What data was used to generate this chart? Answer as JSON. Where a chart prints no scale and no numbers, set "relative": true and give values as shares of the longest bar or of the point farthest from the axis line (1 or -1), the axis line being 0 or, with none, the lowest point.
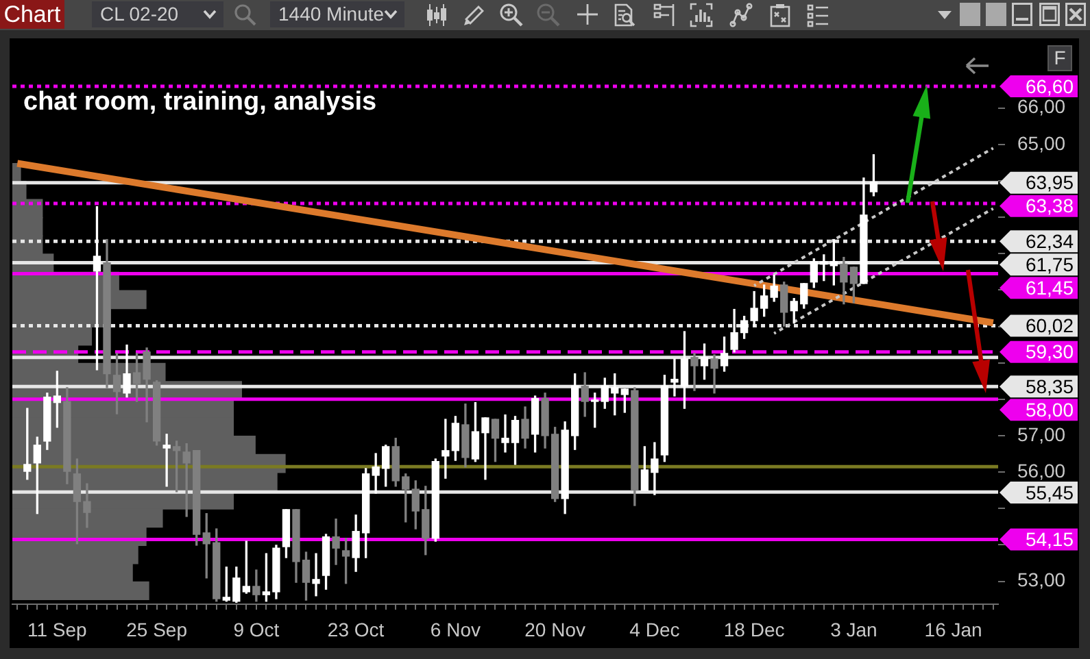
{
  "chart_data": [
    {
      "type": "candlestick",
      "subtitle": "chat room, training, analysis",
      "annotations": [
        "Chart",
        "CL 02-20",
        "1440 Minute",
        "F"
      ],
      "categories": [
        null,
        null,
        null,
        null,
        "11 Sep",
        null,
        null,
        null,
        null,
        null,
        null,
        null,
        null,
        null,
        "25 Sep",
        null,
        null,
        null,
        null,
        null,
        null,
        null,
        null,
        null,
        "9 Oct",
        null,
        null,
        null,
        null,
        null,
        null,
        null,
        null,
        null,
        "23 Oct",
        null,
        null,
        null,
        null,
        null,
        null,
        null,
        null,
        null,
        "6 Nov",
        null,
        null,
        null,
        null,
        null,
        null,
        null,
        null,
        null,
        "20 Nov",
        null,
        null,
        null,
        null,
        null,
        null,
        null,
        null,
        null,
        "4 Dec",
        null,
        null,
        null,
        null,
        null,
        null,
        null,
        null,
        null,
        "18 Dec",
        null,
        null,
        null,
        null,
        null,
        null,
        null,
        null,
        null,
        "3 Jan",
        null,
        null,
        null,
        null,
        null,
        null,
        null,
        null,
        null,
        "16 Jan",
        null,
        null,
        null,
        null
      ],
      "ohlc": [
        null,
        [
          56.02,
          57.75,
          55.8,
          56.21
        ],
        [
          56.25,
          56.96,
          54.86,
          56.74
        ],
        [
          56.85,
          58.17,
          56.62,
          58.06
        ],
        [
          57.91,
          58.77,
          57.23,
          58.09
        ],
        [
          57.94,
          58.32,
          55.68,
          56.02
        ],
        [
          55.95,
          56.36,
          54.03,
          55.19
        ],
        [
          55.19,
          55.68,
          54.48,
          54.89
        ],
        [
          61.52,
          63.29,
          58.81,
          61.93
        ],
        [
          61.75,
          62.39,
          58.32,
          58.7
        ],
        [
          58.66,
          59.26,
          57.6,
          58.21
        ],
        [
          58.17,
          59.49,
          58.06,
          58.7
        ],
        [
          58.73,
          59.26,
          57.94,
          58.43
        ],
        [
          59.3,
          59.41,
          57.38,
          58.55
        ],
        [
          58.47,
          58.51,
          56.74,
          56.85
        ],
        [
          56.66,
          57.04,
          55.61,
          56.74
        ],
        [
          56.7,
          56.85,
          55.46,
          56.59
        ],
        [
          56.55,
          56.78,
          54.78,
          56.25
        ],
        [
          56.59,
          56.59,
          53.99,
          54.29
        ],
        [
          54.33,
          54.86,
          53.09,
          54.03
        ],
        [
          54.06,
          54.44,
          52.45,
          52.52
        ],
        [
          52.48,
          53.39,
          52.45,
          52.56
        ],
        [
          52.45,
          53.39,
          52.42,
          53.09
        ],
        [
          52.71,
          54.1,
          52.67,
          52.86
        ],
        [
          52.86,
          53.31,
          52.45,
          52.63
        ],
        [
          52.63,
          53.76,
          52.45,
          52.71
        ],
        [
          52.71,
          53.99,
          52.52,
          53.91
        ],
        [
          53.95,
          54.97,
          53.65,
          54.97
        ],
        [
          54.97,
          54.97,
          52.97,
          53.54
        ],
        [
          53.58,
          53.8,
          52.48,
          52.97
        ],
        [
          52.94,
          53.76,
          52.6,
          53.05
        ],
        [
          53.16,
          54.29,
          52.78,
          54.22
        ],
        [
          54.22,
          54.71,
          53.46,
          53.91
        ],
        [
          53.84,
          54.18,
          52.94,
          53.69
        ],
        [
          53.65,
          54.82,
          53.27,
          54.37
        ],
        [
          54.33,
          56.1,
          53.65,
          55.95
        ],
        [
          55.91,
          56.51,
          55.42,
          56.14
        ],
        [
          56.1,
          56.74,
          55.61,
          56.7
        ],
        [
          56.7,
          56.93,
          55.61,
          55.76
        ],
        [
          55.87,
          55.95,
          54.63,
          55.53
        ],
        [
          55.53,
          55.76,
          54.44,
          54.93
        ],
        [
          54.97,
          55.61,
          53.73,
          54.18
        ],
        [
          54.18,
          56.36,
          54.1,
          56.29
        ],
        [
          56.44,
          57.45,
          55.83,
          56.59
        ],
        [
          56.59,
          57.53,
          56.32,
          57.34
        ],
        [
          57.3,
          57.87,
          56.14,
          56.4
        ],
        [
          56.36,
          57.91,
          56.29,
          57.11
        ],
        [
          57.08,
          57.49,
          55.8,
          57.49
        ],
        [
          57.45,
          57.45,
          56.29,
          56.93
        ],
        [
          56.81,
          57.57,
          56.55,
          56.93
        ],
        [
          56.81,
          57.53,
          56.21,
          57.42
        ],
        [
          57.45,
          57.79,
          56.66,
          56.93
        ],
        [
          57.04,
          58.09,
          56.55,
          58.02
        ],
        [
          58.02,
          58.17,
          56.66,
          57.0
        ],
        [
          57.04,
          57.23,
          55.19,
          55.27
        ],
        [
          55.27,
          57.38,
          54.86,
          57.15
        ],
        [
          57.0,
          58.7,
          56.62,
          58.36
        ],
        [
          58.36,
          58.73,
          57.53,
          57.94
        ],
        [
          57.94,
          58.17,
          57.23,
          57.98
        ],
        [
          57.94,
          58.58,
          57.75,
          58.36
        ],
        [
          58.17,
          58.7,
          57.57,
          58.32
        ],
        [
          58.13,
          58.28,
          57.64,
          58.28
        ],
        [
          58.24,
          58.32,
          55.08,
          55.5
        ],
        [
          55.5,
          56.7,
          55.5,
          56.06
        ],
        [
          55.99,
          56.81,
          55.38,
          56.36
        ],
        [
          56.47,
          58.66,
          56.29,
          58.36
        ],
        [
          58.47,
          59.11,
          58.09,
          58.55
        ],
        [
          58.36,
          59.86,
          57.75,
          59.11
        ],
        [
          59.15,
          59.26,
          58.24,
          58.92
        ],
        [
          58.92,
          59.52,
          58.55,
          59.15
        ],
        [
          59.11,
          59.22,
          58.17,
          58.85
        ],
        [
          58.92,
          59.71,
          58.77,
          59.26
        ],
        [
          59.37,
          60.47,
          59.3,
          59.83
        ],
        [
          59.83,
          60.28,
          59.67,
          60.16
        ],
        [
          60.16,
          60.96,
          60.01,
          60.5
        ],
        [
          60.5,
          61.14,
          60.28,
          60.84
        ],
        [
          60.8,
          61.41,
          60.69,
          61.11
        ],
        [
          61.14,
          61.22,
          60.01,
          60.39
        ],
        [
          60.43,
          60.77,
          60.09,
          60.69
        ],
        [
          60.62,
          61.18,
          60.5,
          61.18
        ],
        [
          61.22,
          61.86,
          61.07,
          61.78
        ],
        [
          61.71,
          61.97,
          61.26,
          61.78
        ],
        [
          61.67,
          62.39,
          61.14,
          61.78
        ],
        [
          61.71,
          61.9,
          60.62,
          61.22
        ],
        [
          61.63,
          61.63,
          60.65,
          61.18
        ],
        [
          61.18,
          64.08,
          61.18,
          63.06
        ],
        [
          63.7,
          64.72,
          63.59,
          63.97
        ],
        null,
        null,
        null,
        null,
        null,
        null,
        null,
        null,
        null,
        null,
        null,
        null
      ],
      "colors": [
        null,
        "#ffffff",
        "#ffffff",
        "#ffffff",
        "#ffffff",
        "#808080",
        "#808080",
        "#808080",
        "#ffffff",
        "#808080",
        "#808080",
        "#ffffff",
        "#808080",
        "#808080",
        "#808080",
        "#ffffff",
        "#808080",
        "#808080",
        "#808080",
        "#808080",
        "#808080",
        "#ffffff",
        "#ffffff",
        "#ffffff",
        "#808080",
        "#ffffff",
        "#ffffff",
        "#ffffff",
        "#808080",
        "#808080",
        "#ffffff",
        "#ffffff",
        "#808080",
        "#808080",
        "#ffffff",
        "#ffffff",
        "#ffffff",
        "#ffffff",
        "#808080",
        "#808080",
        "#808080",
        "#808080",
        "#ffffff",
        "#ffffff",
        "#ffffff",
        "#808080",
        "#ffffff",
        "#ffffff",
        "#808080",
        "#ffffff",
        "#ffffff",
        "#808080",
        "#ffffff",
        "#808080",
        "#808080",
        "#ffffff",
        "#ffffff",
        "#808080",
        "#ffffff",
        "#ffffff",
        "#ffffff",
        "#ffffff",
        "#808080",
        "#ffffff",
        "#ffffff",
        "#ffffff",
        "#ffffff",
        "#ffffff",
        "#808080",
        "#ffffff",
        "#808080",
        "#ffffff",
        "#ffffff",
        "#ffffff",
        "#ffffff",
        "#ffffff",
        "#ffffff",
        "#808080",
        "#ffffff",
        "#ffffff",
        "#ffffff",
        "#ffffff",
        "#ffffff",
        "#808080",
        "#808080",
        "#ffffff",
        "#ffffff",
        null,
        null,
        null,
        null,
        null,
        null,
        null,
        null,
        null,
        null,
        null,
        null
      ],
      "series": [
        {
          "type": "line",
          "color": "#dd7a2c",
          "line_style": "solid",
          "values": [
            64.48,
            null,
            null,
            null,
            null,
            null,
            null,
            null,
            null,
            null,
            null,
            null,
            null,
            null,
            null,
            null,
            null,
            null,
            null,
            null,
            null,
            null,
            null,
            null,
            null,
            null,
            null,
            null,
            null,
            null,
            null,
            null,
            null,
            null,
            null,
            null,
            null,
            null,
            null,
            null,
            null,
            null,
            null,
            null,
            null,
            null,
            null,
            null,
            null,
            null,
            null,
            null,
            null,
            null,
            null,
            null,
            null,
            null,
            null,
            null,
            null,
            null,
            null,
            null,
            null,
            null,
            null,
            null,
            null,
            null,
            null,
            null,
            null,
            null,
            null,
            null,
            null,
            null,
            null,
            null,
            null,
            null,
            null,
            null,
            null,
            null,
            null,
            null,
            null,
            null,
            null,
            null,
            null,
            null,
            null,
            null,
            null,
            null,
            60.1
          ]
        },
        {
          "type": "line",
          "color": "#c8c8c8",
          "line_style": "dotted",
          "values": [
            null,
            null,
            null,
            null,
            null,
            null,
            null,
            null,
            null,
            null,
            null,
            null,
            null,
            null,
            null,
            null,
            null,
            null,
            null,
            null,
            null,
            null,
            null,
            null,
            null,
            null,
            null,
            null,
            null,
            null,
            null,
            null,
            null,
            null,
            null,
            null,
            null,
            null,
            null,
            null,
            null,
            null,
            null,
            null,
            null,
            null,
            null,
            null,
            null,
            null,
            null,
            null,
            null,
            null,
            null,
            null,
            null,
            null,
            null,
            null,
            null,
            null,
            null,
            null,
            null,
            null,
            null,
            null,
            null,
            null,
            null,
            null,
            null,
            null,
            61.12,
            null,
            null,
            null,
            null,
            null,
            null,
            null,
            null,
            null,
            null,
            null,
            null,
            null,
            null,
            null,
            null,
            null,
            null,
            null,
            null,
            null,
            null,
            null,
            64.9
          ]
        },
        {
          "type": "line",
          "color": "#c8c8c8",
          "line_style": "dotted",
          "values": [
            null,
            null,
            null,
            null,
            null,
            null,
            null,
            null,
            null,
            null,
            null,
            null,
            null,
            null,
            null,
            null,
            null,
            null,
            null,
            null,
            null,
            null,
            null,
            null,
            null,
            null,
            null,
            null,
            null,
            null,
            null,
            null,
            null,
            null,
            null,
            null,
            null,
            null,
            null,
            null,
            null,
            null,
            null,
            null,
            null,
            null,
            null,
            null,
            null,
            null,
            null,
            null,
            null,
            null,
            null,
            null,
            null,
            null,
            null,
            null,
            null,
            null,
            null,
            null,
            null,
            null,
            null,
            null,
            null,
            null,
            null,
            null,
            null,
            null,
            null,
            null,
            59.81,
            null,
            null,
            null,
            null,
            null,
            null,
            null,
            null,
            null,
            null,
            null,
            null,
            null,
            null,
            null,
            null,
            null,
            null,
            null,
            null,
            null,
            63.24
          ]
        }
      ],
      "ylim": [
        52.37,
        67.84
      ],
      "yticks": [
        {
          "value": 53,
          "label": "53,00"
        },
        {
          "value": 54,
          "label": null
        },
        {
          "value": 55,
          "label": null
        },
        {
          "value": 56,
          "label": "56,00"
        },
        {
          "value": 57,
          "label": "57,00"
        },
        {
          "value": 58,
          "label": null
        },
        {
          "value": 59,
          "label": null
        },
        {
          "value": 60,
          "label": null
        },
        {
          "value": 61,
          "label": null
        },
        {
          "value": 62,
          "label": null
        },
        {
          "value": 63,
          "label": null
        },
        {
          "value": 64,
          "label": null
        },
        {
          "value": 65,
          "label": "65,00"
        },
        {
          "value": 66,
          "label": "66,00"
        }
      ],
      "ref_lines": [
        {
          "axis": "y",
          "value": 66.6,
          "label": "66,60",
          "color": "#ee00ee",
          "line_style": "dotted"
        },
        {
          "axis": "y",
          "value": 63.95,
          "label": "63,95",
          "color": "#e6e6e6",
          "line_style": "solid"
        },
        {
          "axis": "y",
          "value": 63.38,
          "label": "63,38",
          "color": "#ee00ee",
          "line_style": "dotted"
        },
        {
          "axis": "y",
          "value": 62.34,
          "label": "62,34",
          "color": "#e6e6e6",
          "line_style": "dotted"
        },
        {
          "axis": "y",
          "value": 61.75,
          "label": "61,75",
          "color": "#e6e6e6",
          "line_style": "solid"
        },
        {
          "axis": "y",
          "value": 61.45,
          "label": "61,45",
          "color": "#ee00ee",
          "line_style": "solid"
        },
        {
          "axis": "y",
          "value": 60.02,
          "label": "60,02",
          "color": "#e6e6e6",
          "line_style": "dotted"
        },
        {
          "axis": "y",
          "value": 59.3,
          "label": "59,30",
          "color": "#ee00ee",
          "line_style": "dashed"
        },
        {
          "axis": "y",
          "value": 59.15,
          "color": "#e6e6e6",
          "line_style": "solid"
        },
        {
          "axis": "y",
          "value": 58.35,
          "label": "58,35",
          "color": "#e6e6e6",
          "line_style": "solid"
        },
        {
          "axis": "y",
          "value": 58.0,
          "label": "58,00",
          "color": "#ee00ee",
          "line_style": "solid"
        },
        {
          "axis": "y",
          "value": 56.15,
          "color": "#7a7a22",
          "line_style": "solid"
        },
        {
          "axis": "y",
          "value": 55.45,
          "label": "55,45",
          "color": "#e6e6e6",
          "line_style": "solid"
        },
        {
          "axis": "y",
          "value": 54.15,
          "label": "54,15",
          "color": "#ee00ee",
          "line_style": "solid"
        }
      ]
    },
    {
      "type": "bar",
      "orientation": "horizontal",
      "relative": true,
      "color": "#5f5f5f",
      "categories": [
        null,
        null,
        null,
        null,
        null,
        null,
        null,
        null,
        null,
        null,
        null,
        null,
        null,
        null,
        null,
        null,
        null,
        null,
        null,
        null,
        null,
        null,
        null,
        null
      ],
      "values": [
        0.03,
        0.05,
        0.11,
        0.11,
        0.11,
        0.15,
        0.39,
        0.49,
        0.36,
        0.29,
        0.24,
        0.56,
        0.84,
        0.81,
        0.81,
        0.89,
        1,
        0.97,
        0.81,
        0.55,
        0.49,
        0.46,
        0.44,
        0.5
      ]
    }
  ]
}
